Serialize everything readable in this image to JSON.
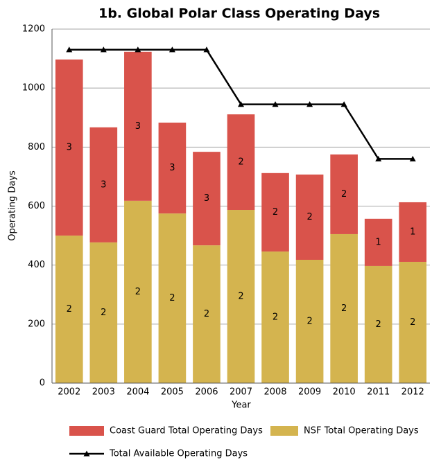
{
  "chart_data": {
    "type": "stacked_bar_line",
    "title": "1b. Global Polar Class Operating Days",
    "x_label": "Year",
    "y_label": "Operating Days",
    "categories": [
      "2002",
      "2003",
      "2004",
      "2005",
      "2006",
      "2007",
      "2008",
      "2009",
      "2010",
      "2011",
      "2012"
    ],
    "series": [
      {
        "name": "NSF Total Operating Days",
        "color": "#d4b44f",
        "kind": "bar",
        "values": [
          500,
          477,
          618,
          575,
          467,
          587,
          446,
          418,
          505,
          397,
          411
        ],
        "annotations": [
          "2",
          "2",
          "2",
          "2",
          "2",
          "2",
          "2",
          "2",
          "2",
          "2",
          "2"
        ]
      },
      {
        "name": "Coast Guard Total Operating Days",
        "color": "#d9534b",
        "kind": "bar",
        "values": [
          597,
          390,
          505,
          308,
          317,
          324,
          266,
          289,
          270,
          160,
          202
        ],
        "annotations": [
          "3",
          "3",
          "3",
          "3",
          "3",
          "2",
          "2",
          "2",
          "2",
          "1",
          "1"
        ]
      },
      {
        "name": "Total Available Operating Days",
        "color": "#000000",
        "kind": "line",
        "values": [
          1130,
          1130,
          1130,
          1130,
          1130,
          945,
          945,
          945,
          945,
          760,
          760
        ]
      }
    ],
    "ylim": [
      0,
      1200
    ],
    "yticks": [
      0,
      200,
      400,
      600,
      800,
      1000,
      1200
    ],
    "grid": true
  }
}
